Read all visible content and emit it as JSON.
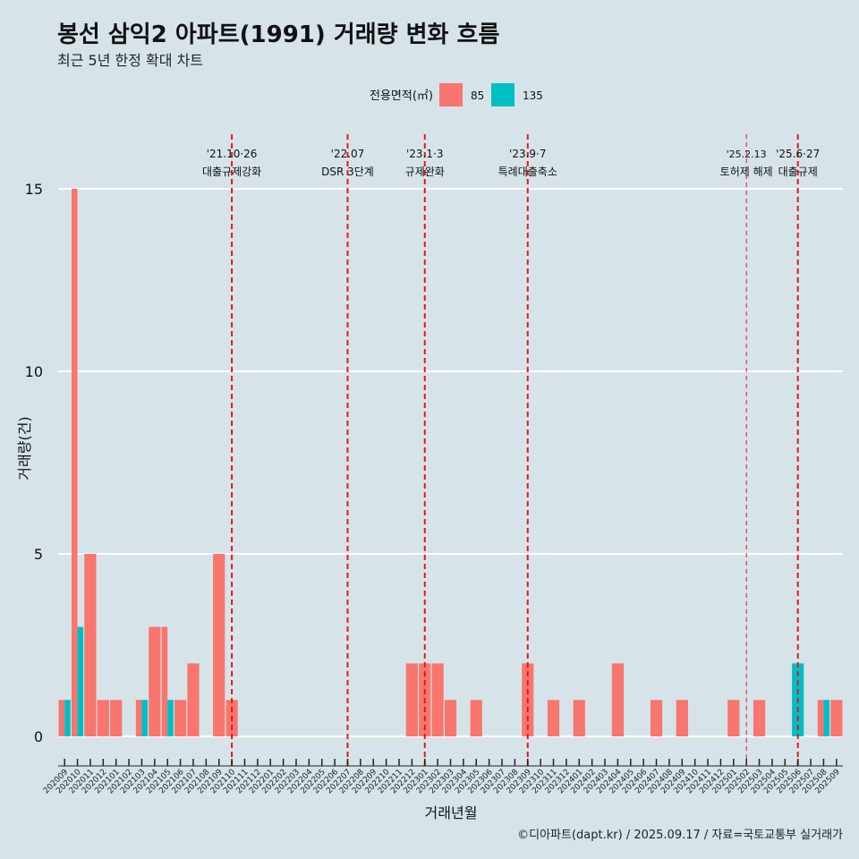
{
  "header": {
    "title": "봉선 삼익2 아파트(1991) 거래량 변화 흐름",
    "subtitle": "최근 5년 한정 확대 차트"
  },
  "caption": "©디아파트(dapt.kr) / 2025.09.17 / 자료=국토교통부 실거래가",
  "colors": {
    "series_85": "#f8766d",
    "series_135": "#00bfc4",
    "event_line": "#e8151b",
    "background": "#d6e4ea",
    "grid": "#ffffff"
  },
  "chart_data": {
    "type": "bar",
    "xlabel": "거래년월",
    "ylabel": "거래량(건)",
    "ylim": [
      0,
      15
    ],
    "yticks": [
      0,
      5,
      10,
      15
    ],
    "grid": true,
    "legend": {
      "title": "전용면적(㎡)",
      "position": "top"
    },
    "categories": [
      "202009",
      "202010",
      "202011",
      "202012",
      "202101",
      "202102",
      "202103",
      "202104",
      "202105",
      "202106",
      "202107",
      "202108",
      "202109",
      "202110",
      "202111",
      "202112",
      "202201",
      "202202",
      "202203",
      "202204",
      "202205",
      "202206",
      "202207",
      "202208",
      "202209",
      "202210",
      "202211",
      "202212",
      "202301",
      "202302",
      "202303",
      "202304",
      "202305",
      "202306",
      "202307",
      "202308",
      "202309",
      "202310",
      "202311",
      "202312",
      "202401",
      "202402",
      "202403",
      "202404",
      "202405",
      "202406",
      "202407",
      "202408",
      "202409",
      "202410",
      "202411",
      "202412",
      "202501",
      "202502",
      "202503",
      "202504",
      "202505",
      "202506",
      "202507",
      "202508",
      "202509"
    ],
    "series": [
      {
        "name": "85",
        "values": [
          1,
          15,
          5,
          1,
          1,
          0,
          1,
          3,
          3,
          1,
          2,
          0,
          5,
          1,
          0,
          0,
          0,
          0,
          0,
          0,
          0,
          0,
          0,
          0,
          0,
          0,
          0,
          2,
          2,
          2,
          1,
          0,
          1,
          0,
          0,
          0,
          2,
          0,
          1,
          0,
          1,
          0,
          0,
          2,
          0,
          0,
          1,
          0,
          1,
          0,
          0,
          0,
          1,
          0,
          1,
          0,
          0,
          0,
          0,
          1,
          1
        ]
      },
      {
        "name": "135",
        "values": [
          1,
          3,
          0,
          0,
          0,
          0,
          1,
          0,
          1,
          0,
          0,
          0,
          0,
          0,
          0,
          0,
          0,
          0,
          0,
          0,
          0,
          0,
          0,
          0,
          0,
          0,
          0,
          0,
          0,
          0,
          0,
          0,
          0,
          0,
          0,
          0,
          0,
          0,
          0,
          0,
          0,
          0,
          0,
          0,
          0,
          0,
          0,
          0,
          0,
          0,
          0,
          0,
          0,
          0,
          0,
          0,
          0,
          2,
          0,
          1,
          0
        ]
      }
    ],
    "events": [
      {
        "x": "202110",
        "date": "'21.10·26",
        "label": "대출규제강화",
        "style": "dashed-bold"
      },
      {
        "x": "202207",
        "date": "'22.07",
        "label": "DSR 3단계",
        "style": "dashed-bold"
      },
      {
        "x": "202301",
        "date": "'23.1·3",
        "label": "규제완화",
        "style": "dashed-bold"
      },
      {
        "x": "202309",
        "date": "'23.9·7",
        "label": "특례대출축소",
        "style": "dashed-bold"
      },
      {
        "x": "202502",
        "date": "'25.2.13",
        "label": "토허제 해제",
        "style": "dashed-thin"
      },
      {
        "x": "202506",
        "date": "'25.6·27",
        "label": "대출규제",
        "style": "dashed-bold"
      }
    ]
  }
}
